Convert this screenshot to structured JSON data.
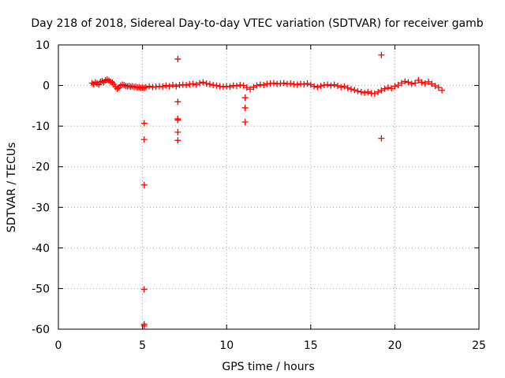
{
  "chart_data": {
    "type": "scatter",
    "title": "Day 218 of 2018, Sidereal Day-to-day VTEC variation (SDTVAR) for receiver gamb",
    "xlabel": "GPS time / hours",
    "ylabel": "SDTVAR / TECUs",
    "xlim": [
      0,
      25
    ],
    "ylim": [
      -60,
      10
    ],
    "grid": true,
    "marker": "+",
    "colors": {
      "series": "#ff0000"
    },
    "x_ticks": [
      0,
      5,
      10,
      15,
      20,
      25
    ],
    "x_tick_labels": [
      "0",
      "5",
      "10",
      "15",
      "20",
      "25"
    ],
    "y_ticks": [
      10,
      0,
      -10,
      -20,
      -30,
      -40,
      -50,
      -60
    ],
    "y_tick_labels": [
      "10",
      "0",
      "-10",
      "-20",
      "-30",
      "-40",
      "-50",
      "-60"
    ],
    "series": [
      {
        "name": "SDTVAR",
        "points": [
          [
            2.0,
            0.6
          ],
          [
            2.1,
            0.3
          ],
          [
            2.2,
            0.8
          ],
          [
            2.3,
            0.5
          ],
          [
            2.4,
            0.2
          ],
          [
            2.5,
            0.9
          ],
          [
            2.6,
            1.1
          ],
          [
            2.7,
            0.8
          ],
          [
            2.8,
            1.3
          ],
          [
            2.9,
            1.5
          ],
          [
            3.0,
            1.2
          ],
          [
            3.1,
            0.9
          ],
          [
            3.2,
            0.7
          ],
          [
            3.3,
            0.3
          ],
          [
            3.4,
            -0.3
          ],
          [
            3.5,
            -0.8
          ],
          [
            3.6,
            -0.5
          ],
          [
            3.7,
            0.0
          ],
          [
            3.8,
            0.2
          ],
          [
            3.9,
            0.1
          ],
          [
            4.0,
            -0.1
          ],
          [
            4.1,
            -0.2
          ],
          [
            4.2,
            -0.1
          ],
          [
            4.3,
            -0.3
          ],
          [
            4.4,
            -0.2
          ],
          [
            4.5,
            -0.4
          ],
          [
            4.6,
            -0.3
          ],
          [
            4.7,
            -0.5
          ],
          [
            4.8,
            -0.4
          ],
          [
            4.9,
            -0.6
          ],
          [
            5.0,
            -0.5
          ],
          [
            5.1,
            -0.6
          ],
          [
            5.2,
            -0.4
          ],
          [
            5.4,
            -0.2
          ],
          [
            5.6,
            -0.4
          ],
          [
            5.8,
            -0.3
          ],
          [
            6.0,
            -0.2
          ],
          [
            6.2,
            -0.3
          ],
          [
            6.4,
            0.0
          ],
          [
            6.6,
            -0.2
          ],
          [
            6.8,
            0.1
          ],
          [
            7.0,
            -0.2
          ],
          [
            7.2,
            0.1
          ],
          [
            7.4,
            0.2
          ],
          [
            7.6,
            0.1
          ],
          [
            7.8,
            0.3
          ],
          [
            8.0,
            0.4
          ],
          [
            8.2,
            0.2
          ],
          [
            8.4,
            0.6
          ],
          [
            8.6,
            0.8
          ],
          [
            8.8,
            0.5
          ],
          [
            9.0,
            0.3
          ],
          [
            9.2,
            0.1
          ],
          [
            9.4,
            0.0
          ],
          [
            9.6,
            -0.2
          ],
          [
            9.8,
            -0.3
          ],
          [
            10.0,
            -0.2
          ],
          [
            10.2,
            -0.3
          ],
          [
            10.4,
            0.0
          ],
          [
            10.6,
            -0.1
          ],
          [
            10.8,
            0.1
          ],
          [
            11.0,
            0.0
          ],
          [
            11.2,
            -0.5
          ],
          [
            11.4,
            -0.9
          ],
          [
            11.6,
            -0.4
          ],
          [
            11.8,
            0.0
          ],
          [
            12.0,
            0.2
          ],
          [
            12.2,
            0.1
          ],
          [
            12.4,
            0.4
          ],
          [
            12.6,
            0.5
          ],
          [
            12.8,
            0.6
          ],
          [
            13.0,
            0.4
          ],
          [
            13.2,
            0.5
          ],
          [
            13.4,
            0.6
          ],
          [
            13.6,
            0.4
          ],
          [
            13.8,
            0.5
          ],
          [
            14.0,
            0.3
          ],
          [
            14.2,
            0.2
          ],
          [
            14.4,
            0.4
          ],
          [
            14.6,
            0.3
          ],
          [
            14.8,
            0.5
          ],
          [
            15.0,
            0.2
          ],
          [
            15.2,
            -0.2
          ],
          [
            15.4,
            -0.4
          ],
          [
            15.6,
            -0.1
          ],
          [
            15.8,
            0.1
          ],
          [
            16.0,
            0.2
          ],
          [
            16.2,
            0.0
          ],
          [
            16.4,
            0.2
          ],
          [
            16.6,
            -0.1
          ],
          [
            16.8,
            -0.4
          ],
          [
            17.0,
            -0.2
          ],
          [
            17.2,
            -0.6
          ],
          [
            17.4,
            -0.9
          ],
          [
            17.6,
            -1.1
          ],
          [
            17.8,
            -1.4
          ],
          [
            18.0,
            -1.6
          ],
          [
            18.2,
            -1.8
          ],
          [
            18.4,
            -1.6
          ],
          [
            18.6,
            -1.9
          ],
          [
            18.8,
            -2.0
          ],
          [
            19.0,
            -1.6
          ],
          [
            19.2,
            -1.2
          ],
          [
            19.4,
            -0.8
          ],
          [
            19.6,
            -0.5
          ],
          [
            19.8,
            -0.7
          ],
          [
            20.0,
            -0.2
          ],
          [
            20.2,
            0.1
          ],
          [
            20.4,
            0.6
          ],
          [
            20.6,
            1.0
          ],
          [
            20.8,
            0.8
          ],
          [
            21.0,
            0.4
          ],
          [
            21.2,
            0.6
          ],
          [
            21.4,
            1.3
          ],
          [
            21.6,
            0.8
          ],
          [
            21.8,
            0.5
          ],
          [
            22.0,
            0.9
          ],
          [
            22.2,
            0.4
          ],
          [
            22.4,
            -0.1
          ],
          [
            22.6,
            -0.5
          ],
          [
            22.8,
            -1.2
          ],
          [
            5.1,
            -9.3
          ],
          [
            5.1,
            -13.3
          ],
          [
            5.1,
            -24.5
          ],
          [
            5.1,
            -50.2
          ],
          [
            5.1,
            -58.8
          ],
          [
            5.1,
            -59.2
          ],
          [
            7.1,
            6.5
          ],
          [
            7.1,
            -4.0
          ],
          [
            7.1,
            -8.2
          ],
          [
            7.1,
            -8.5
          ],
          [
            7.1,
            -11.5
          ],
          [
            7.1,
            -13.5
          ],
          [
            11.1,
            -3.0
          ],
          [
            11.1,
            -5.5
          ],
          [
            11.1,
            -9.0
          ],
          [
            19.2,
            7.5
          ],
          [
            19.2,
            -13.0
          ]
        ]
      }
    ]
  }
}
